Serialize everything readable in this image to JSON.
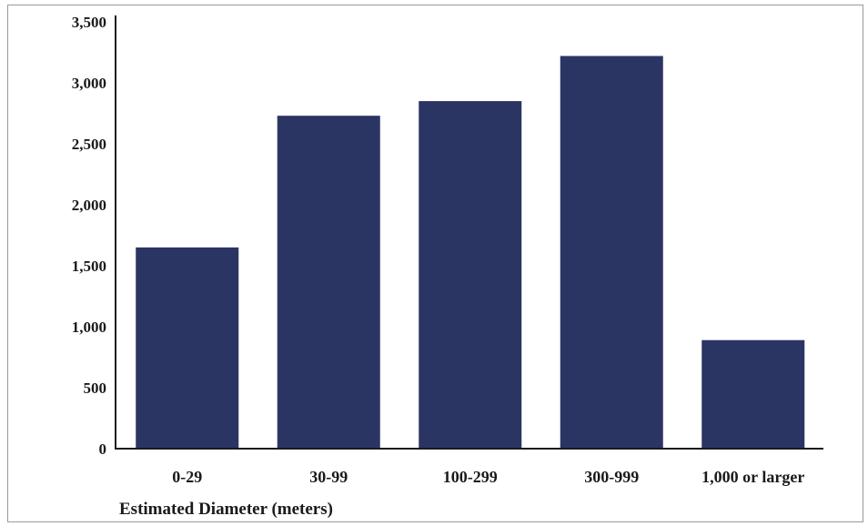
{
  "chart_data": {
    "type": "bar",
    "title": "",
    "xlabel": "Estimated Diameter (meters)",
    "ylabel": "",
    "categories": [
      "0-29",
      "30-99",
      "100-299",
      "300-999",
      "1,000 or larger"
    ],
    "values": [
      1650,
      2730,
      2850,
      3220,
      890
    ],
    "ylim": [
      0,
      3500
    ],
    "yticks": [
      0,
      500,
      1000,
      1500,
      2000,
      2500,
      3000,
      3500
    ],
    "ytick_labels": [
      "0",
      "500",
      "1,000",
      "1,500",
      "2,000",
      "2,500",
      "3,000",
      "3,500"
    ],
    "grid": false,
    "legend": "none",
    "bar_color": "#2b3564",
    "axis_color": "#1a1a1a"
  }
}
